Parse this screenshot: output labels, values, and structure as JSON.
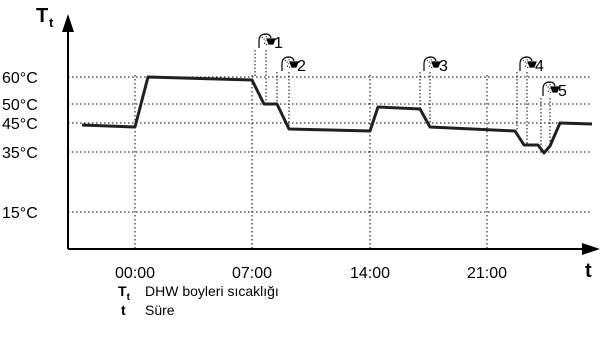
{
  "diagram": {
    "y_axis": {
      "symbol": "T",
      "subscript": "t"
    },
    "x_axis": {
      "symbol": "t"
    },
    "y_ticks": [
      {
        "label": "60°C",
        "value": 60
      },
      {
        "label": "50°C",
        "value": 50
      },
      {
        "label": "45°C",
        "value": 45
      },
      {
        "label": "35°C",
        "value": 35
      },
      {
        "label": "15°C",
        "value": 15
      }
    ],
    "x_ticks": [
      "00:00",
      "07:00",
      "14:00",
      "21:00"
    ],
    "events": [
      {
        "label": "1",
        "icon": "shower-icon"
      },
      {
        "label": "2",
        "icon": "shower-icon"
      },
      {
        "label": "3",
        "icon": "shower-icon"
      },
      {
        "label": "4",
        "icon": "shower-icon"
      },
      {
        "label": "5",
        "icon": "shower-icon"
      }
    ],
    "line_color": "#231f20"
  },
  "legend": [
    {
      "symbol": "T",
      "subscript": "t",
      "text": "DHW boyleri sıcaklığı"
    },
    {
      "symbol": "t",
      "subscript": "",
      "text": "Süre"
    }
  ]
}
